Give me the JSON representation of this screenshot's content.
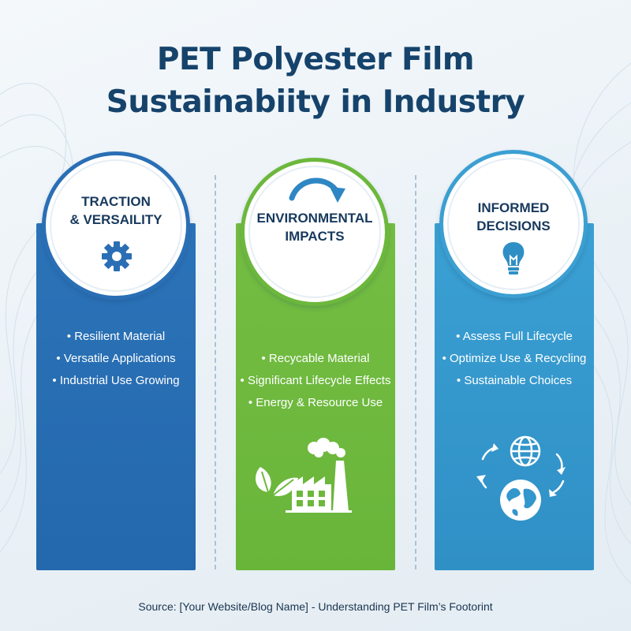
{
  "title": {
    "line1": "PET Polyester Film",
    "line2": "Sustainabiity in Industry"
  },
  "columns": [
    {
      "title_line1": "TRACTION",
      "title_line2": "& VERSAILITY",
      "color": "#2a6fb5",
      "icon": "gear-icon",
      "bullets": [
        "Resilient Material",
        "Versatile Applications",
        "Industrial Use Growing"
      ]
    },
    {
      "title_line1": "ENVIRONMENTAL",
      "title_line2": "IMPACTS",
      "color": "#6cb83c",
      "icon": "curved-arrow-icon",
      "bullets": [
        "Recycable Material",
        "Significant Lifecycle Effects",
        "Energy & Resource Use"
      ],
      "illustration": "factory-with-leaves-icon"
    },
    {
      "title_line1": "INFORMED",
      "title_line2": "DECISIONS",
      "color": "#3b9fd2",
      "icon": "lightbulb-icon",
      "bullets": [
        "Assess Full Lifecycle",
        "Optimize Use & Recycling",
        "Sustainable Choices"
      ],
      "illustration": "globes-cycle-icon"
    }
  ],
  "source": "Source: [Your Website/Blog Name] - Understanding PET Film’s Footorint"
}
